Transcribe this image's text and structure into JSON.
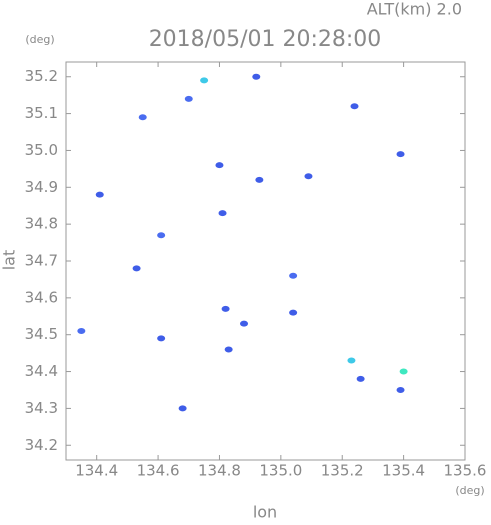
{
  "chart_data": {
    "type": "scatter",
    "alt_label": "ALT(km)  2.0",
    "title": "2018/05/01  20:28:00",
    "y_unit": "(deg)",
    "x_unit": "(deg)",
    "ylabel": "lat",
    "xlabel": "lon",
    "xlim": [
      134.3,
      135.6
    ],
    "ylim": [
      34.16,
      35.24
    ],
    "xticks": [
      134.4,
      134.6,
      134.8,
      {
        "value": 135,
        "label": "135.0"
      },
      135.2,
      135.4,
      135.6
    ],
    "yticks": [
      34.2,
      34.3,
      34.4,
      34.5,
      34.6,
      34.7,
      34.8,
      34.9,
      {
        "value": 35,
        "label": "35.0"
      },
      35.1,
      35.2
    ],
    "x": [
      134.55,
      134.7,
      134.75,
      134.92,
      135.24,
      135.39,
      134.8,
      134.93,
      135.09,
      134.41,
      134.81,
      134.61,
      134.53,
      135.04,
      135.04,
      134.82,
      134.88,
      134.35,
      134.61,
      134.83,
      135.23,
      135.26,
      135.4,
      135.39,
      134.68
    ],
    "y": [
      35.09,
      35.14,
      35.19,
      35.2,
      35.12,
      34.99,
      34.96,
      34.92,
      34.93,
      34.88,
      34.83,
      34.77,
      34.68,
      34.66,
      34.56,
      34.57,
      34.53,
      34.51,
      34.49,
      34.46,
      34.43,
      34.38,
      34.4,
      34.35,
      34.3
    ],
    "colors": [
      "#4a6cf0",
      "#4a6cf0",
      "#3ec9e8",
      "#3f5de8",
      "#3f5de8",
      "#3f5de8",
      "#3f5de8",
      "#3f5de8",
      "#3f5de8",
      "#3f5de8",
      "#3f5de8",
      "#4a6cf0",
      "#3f5de8",
      "#4a6cf0",
      "#3f5de8",
      "#3f5de8",
      "#3f5de8",
      "#4a6cf0",
      "#3f5de8",
      "#3f5de8",
      "#3ec9e8",
      "#3f5de8",
      "#3ee8c0",
      "#3f5de8",
      "#3f5de8"
    ]
  }
}
